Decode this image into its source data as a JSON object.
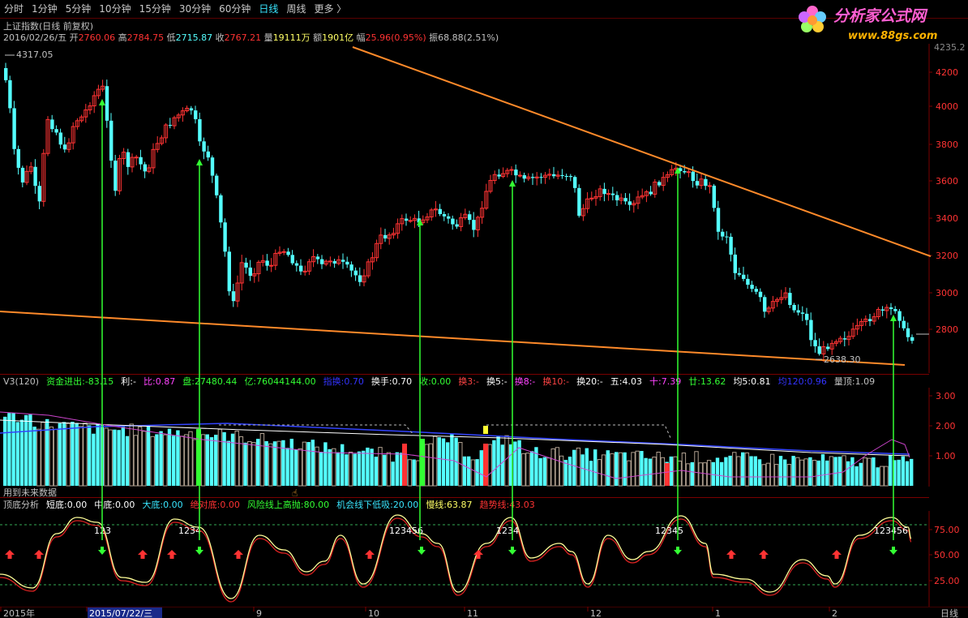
{
  "toolbar": {
    "tabs": [
      "分时",
      "1分钟",
      "5分钟",
      "10分钟",
      "15分钟",
      "30分钟",
      "60分钟",
      "日线",
      "周线",
      "更多 〉"
    ],
    "active_index": 7
  },
  "logo": {
    "title": "分析家公式网",
    "url": "www.88gs.com"
  },
  "main_chart": {
    "title": "上证指数(日线 前复权)",
    "info": {
      "date": "2016/02/26/五",
      "open_label": "开",
      "open": "2760.06",
      "high_label": "高",
      "high": "2784.75",
      "low_label": "低",
      "low": "2715.87",
      "close_label": "收",
      "close": "2767.21",
      "vol_label": "量",
      "vol": "19111万",
      "amt_label": "额",
      "amt": "1901亿",
      "chg_label": "幅",
      "chg": "25.96(0.95%)",
      "amp_label": "振",
      "amp": "68.88(2.51%)"
    },
    "high_marker": "4317.05",
    "low_marker": "2638.30",
    "y_ticks": [
      "4200",
      "4000",
      "3800",
      "3600",
      "3400",
      "3200",
      "3000",
      "2800"
    ],
    "top_right_value": "4235.2"
  },
  "volume_panel": {
    "items": [
      {
        "label": "V3(120)",
        "value": "",
        "color": "#c0c0c0"
      },
      {
        "label": "资金进出:",
        "value": "-83.15",
        "color": "#33ff33"
      },
      {
        "label": "利:",
        "value": "-",
        "color": "#ffffff"
      },
      {
        "label": "比:",
        "value": "0.87",
        "color": "#ff44ff"
      },
      {
        "label": "盘:",
        "value": "27480.44",
        "color": "#33ff33"
      },
      {
        "label": "亿:",
        "value": "76044144.00",
        "color": "#33ff33"
      },
      {
        "label": "指换:",
        "value": "0.70",
        "color": "#3333ff"
      },
      {
        "label": "换手:",
        "value": "0.70",
        "color": "#ffffff"
      },
      {
        "label": "收:",
        "value": "0.00",
        "color": "#33ff33"
      },
      {
        "label": "换3:",
        "value": "-",
        "color": "#ff4444"
      },
      {
        "label": "换5:",
        "value": "-",
        "color": "#ffffff"
      },
      {
        "label": "换8:",
        "value": "-",
        "color": "#ff44ff"
      },
      {
        "label": "换10:",
        "value": "-",
        "color": "#ff4444"
      },
      {
        "label": "换20:",
        "value": "-",
        "color": "#ffffff"
      },
      {
        "label": "五:",
        "value": "4.03",
        "color": "#ffffff"
      },
      {
        "label": "十:",
        "value": "7.39",
        "color": "#ff44ff"
      },
      {
        "label": "廿:",
        "value": "13.62",
        "color": "#33ff33"
      },
      {
        "label": "均5:",
        "value": "0.81",
        "color": "#ffffff"
      },
      {
        "label": "均120:",
        "value": "0.96",
        "color": "#3333ff"
      },
      {
        "label": "量顶:",
        "value": "1.09",
        "color": "#c0c0c0"
      }
    ],
    "y_ticks": [
      "3.00",
      "2.00",
      "1.00"
    ],
    "footnote": "用到未来数据"
  },
  "osc_panel": {
    "items": [
      {
        "label": "顶底分析",
        "value": "",
        "color": "#c0c0c0"
      },
      {
        "label": "短底:",
        "value": "0.00",
        "color": "#ffffff"
      },
      {
        "label": "中底:",
        "value": "0.00",
        "color": "#ffffff"
      },
      {
        "label": "大底:",
        "value": "0.00",
        "color": "#39e6ff"
      },
      {
        "label": "绝对底:",
        "value": "0.00",
        "color": "#ff3333"
      },
      {
        "label": "风险线上高抛:",
        "value": "80.00",
        "color": "#33ff33"
      },
      {
        "label": "机会线下低吸:",
        "value": "20.00",
        "color": "#39e6ff"
      },
      {
        "label": "慢线:",
        "value": "63.87",
        "color": "#ffff66"
      },
      {
        "label": "趋势线:",
        "value": "43.03",
        "color": "#ff3333"
      }
    ],
    "y_ticks": [
      "75.00",
      "50.00",
      "25.00"
    ],
    "peak_labels": [
      "123",
      "1234",
      "123456",
      "1234",
      "12345",
      "123456"
    ]
  },
  "x_axis": {
    "labels": [
      "2015年",
      "2015/07/22/三",
      "9",
      "10",
      "11",
      "12",
      "1",
      "2"
    ],
    "period": "日线"
  },
  "colors": {
    "up": "#ff3333",
    "down": "#54ffff",
    "trend": "#ff8a2a",
    "arrow": "#33ff33"
  }
}
